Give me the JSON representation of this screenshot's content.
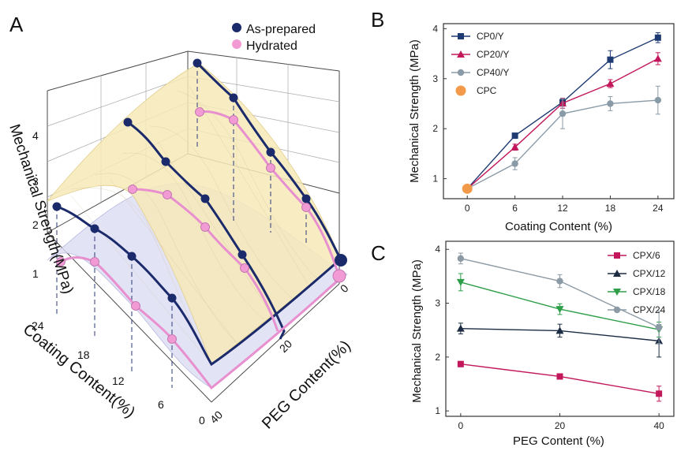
{
  "panels": {
    "a": "A",
    "b": "B",
    "c": "C"
  },
  "colors": {
    "navy": "#1b2a6b",
    "pink": "#e890cf",
    "pink_dot": "#f29ad4",
    "orange": "#f39a4a",
    "cp0": "#1f3b73",
    "cp20": "#c2185b",
    "cp40": "#8a9ba8",
    "cpx6": "#c2185b",
    "cpx12": "#1c2c44",
    "cpx18": "#2e9e48",
    "cpx24": "#8c9aa5",
    "surface_top": "#f7e9b8",
    "surface_bottom": "#dcdcf4"
  },
  "chart_data": [
    {
      "id": "a",
      "type": "surface3d",
      "zlabel": "Mechanical Strength(MPa)",
      "xlabel": "Coating Content(%)",
      "ylabel": "PEG Content(%)",
      "x_ticks": [
        "24",
        "18",
        "12",
        "6",
        "0"
      ],
      "y_ticks": [
        "0",
        "20",
        "40"
      ],
      "z_ticks": [
        "1",
        "2",
        "3",
        "4"
      ],
      "legend": [
        "As-prepared",
        "Hydrated"
      ],
      "series": [
        {
          "name": "As-prepared",
          "peg": 0,
          "coating": [
            0,
            6,
            12,
            18,
            24
          ],
          "values": [
            0.8,
            1.86,
            2.53,
            3.38,
            3.82
          ]
        },
        {
          "name": "As-prepared",
          "peg": 20,
          "coating": [
            6,
            12,
            18,
            24
          ],
          "values": [
            1.63,
            2.48,
            2.9,
            3.4
          ]
        },
        {
          "name": "As-prepared",
          "peg": 40,
          "coating": [
            6,
            12,
            18,
            24
          ],
          "values": [
            1.3,
            2.3,
            2.5,
            2.55
          ]
        },
        {
          "name": "Hydrated",
          "peg": 0,
          "coating": [
            0,
            12,
            18,
            24
          ],
          "values": [
            0.45,
            2.0,
            2.3,
            2.5
          ]
        },
        {
          "name": "Hydrated",
          "peg": 20,
          "coating": [
            6,
            12,
            18,
            24
          ],
          "values": [
            0.9,
            1.7,
            1.7,
            2.1
          ]
        },
        {
          "name": "Hydrated",
          "peg": 40,
          "coating": [
            6,
            12,
            18,
            24
          ],
          "values": [
            0.3,
            0.8,
            0.9,
            1.4
          ]
        }
      ]
    },
    {
      "id": "b",
      "type": "line",
      "xlabel": "Coating Content (%)",
      "ylabel": "Mechanical Strength (MPa)",
      "x": [
        0,
        6,
        12,
        18,
        24
      ],
      "xlim": [
        -3,
        26
      ],
      "ylim": [
        0.6,
        4.1
      ],
      "x_ticks": [
        0,
        6,
        12,
        18,
        24
      ],
      "y_ticks": [
        1,
        2,
        3,
        4
      ],
      "legend_position": "top-left",
      "series": [
        {
          "name": "CP0/Y",
          "values": [
            0.8,
            1.86,
            2.53,
            3.38,
            3.82
          ],
          "errors": [
            0,
            0.04,
            0.08,
            0.18,
            0.1
          ],
          "marker": "square"
        },
        {
          "name": "CP20/Y",
          "values": [
            0.8,
            1.63,
            2.51,
            2.9,
            3.4
          ],
          "errors": [
            0,
            0.06,
            0.1,
            0.08,
            0.12
          ],
          "marker": "triangle-up"
        },
        {
          "name": "CP40/Y",
          "values": [
            0.8,
            1.3,
            2.3,
            2.5,
            2.57
          ],
          "errors": [
            0,
            0.12,
            0.3,
            0.14,
            0.28
          ],
          "marker": "circle"
        }
      ],
      "points": [
        {
          "name": "CPC",
          "x": 0,
          "y": 0.8,
          "marker": "circle-large"
        }
      ]
    },
    {
      "id": "c",
      "type": "line",
      "xlabel": "PEG Content (%)",
      "ylabel": "Mechanical Strength (MPa)",
      "x": [
        0,
        20,
        40
      ],
      "xlim": [
        -3,
        43
      ],
      "ylim": [
        0.9,
        4.15
      ],
      "x_ticks": [
        0,
        20,
        40
      ],
      "y_ticks": [
        1,
        2,
        3,
        4
      ],
      "legend_position": "top-right",
      "series": [
        {
          "name": "CPX/6",
          "values": [
            1.87,
            1.64,
            1.32
          ],
          "errors": [
            0.05,
            0.05,
            0.14
          ],
          "marker": "square"
        },
        {
          "name": "CPX/12",
          "values": [
            2.53,
            2.49,
            2.3
          ],
          "errors": [
            0.1,
            0.12,
            0.3
          ],
          "marker": "triangle-up"
        },
        {
          "name": "CPX/18",
          "values": [
            3.39,
            2.89,
            2.51
          ],
          "errors": [
            0.16,
            0.1,
            0.14
          ],
          "marker": "triangle-down"
        },
        {
          "name": "CPX/24",
          "values": [
            3.83,
            3.41,
            2.55
          ],
          "errors": [
            0.1,
            0.12,
            0.3
          ],
          "marker": "circle"
        }
      ]
    }
  ]
}
